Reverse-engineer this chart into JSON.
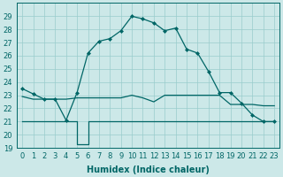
{
  "xlabel": "Humidex (Indice chaleur)",
  "bg_color": "#cce8e8",
  "line_color": "#006666",
  "xlim": [
    -0.5,
    23.5
  ],
  "ylim": [
    19,
    30
  ],
  "yticks": [
    19,
    20,
    21,
    22,
    23,
    24,
    25,
    26,
    27,
    28,
    29
  ],
  "xticks": [
    0,
    1,
    2,
    3,
    4,
    5,
    6,
    7,
    8,
    9,
    10,
    11,
    12,
    13,
    14,
    15,
    16,
    17,
    18,
    19,
    20,
    21,
    22,
    23
  ],
  "line1_x": [
    0,
    1,
    2,
    3,
    4,
    5,
    6,
    7,
    8,
    9,
    10,
    11,
    12,
    13,
    14,
    15,
    16,
    17,
    18,
    19,
    20,
    21,
    22,
    23
  ],
  "line1_y": [
    23.5,
    23.1,
    22.7,
    22.7,
    21.1,
    23.2,
    26.2,
    27.1,
    27.3,
    27.9,
    29.0,
    28.8,
    28.5,
    27.9,
    28.1,
    26.5,
    26.2,
    24.8,
    23.2,
    23.2,
    22.4,
    21.5,
    21.0,
    21.0
  ],
  "line2_x": [
    0,
    1,
    2,
    3,
    4,
    5,
    6,
    7,
    8,
    9,
    10,
    11,
    12,
    13,
    14,
    15,
    16,
    17,
    18,
    19,
    20,
    21,
    22,
    23
  ],
  "line2_y": [
    22.9,
    22.7,
    22.7,
    22.7,
    22.7,
    22.8,
    22.8,
    22.8,
    22.8,
    22.8,
    23.0,
    22.8,
    22.5,
    23.0,
    23.0,
    23.0,
    23.0,
    23.0,
    23.0,
    22.3,
    22.3,
    22.3,
    22.2,
    22.2
  ],
  "line3_x": [
    0,
    1,
    2,
    3,
    4,
    5,
    5,
    6,
    6,
    7,
    8,
    9,
    10,
    11,
    12,
    13,
    14,
    15,
    16,
    17,
    18,
    19,
    20,
    21,
    22,
    23
  ],
  "line3_y": [
    21.0,
    21.0,
    21.0,
    21.0,
    21.0,
    21.0,
    19.3,
    19.3,
    21.0,
    21.0,
    21.0,
    21.0,
    21.0,
    21.0,
    21.0,
    21.0,
    21.0,
    21.0,
    21.0,
    21.0,
    21.0,
    21.0,
    21.0,
    21.0,
    21.0,
    21.0
  ],
  "grid_color": "#99cccc",
  "label_fontsize": 7,
  "tick_fontsize": 6
}
